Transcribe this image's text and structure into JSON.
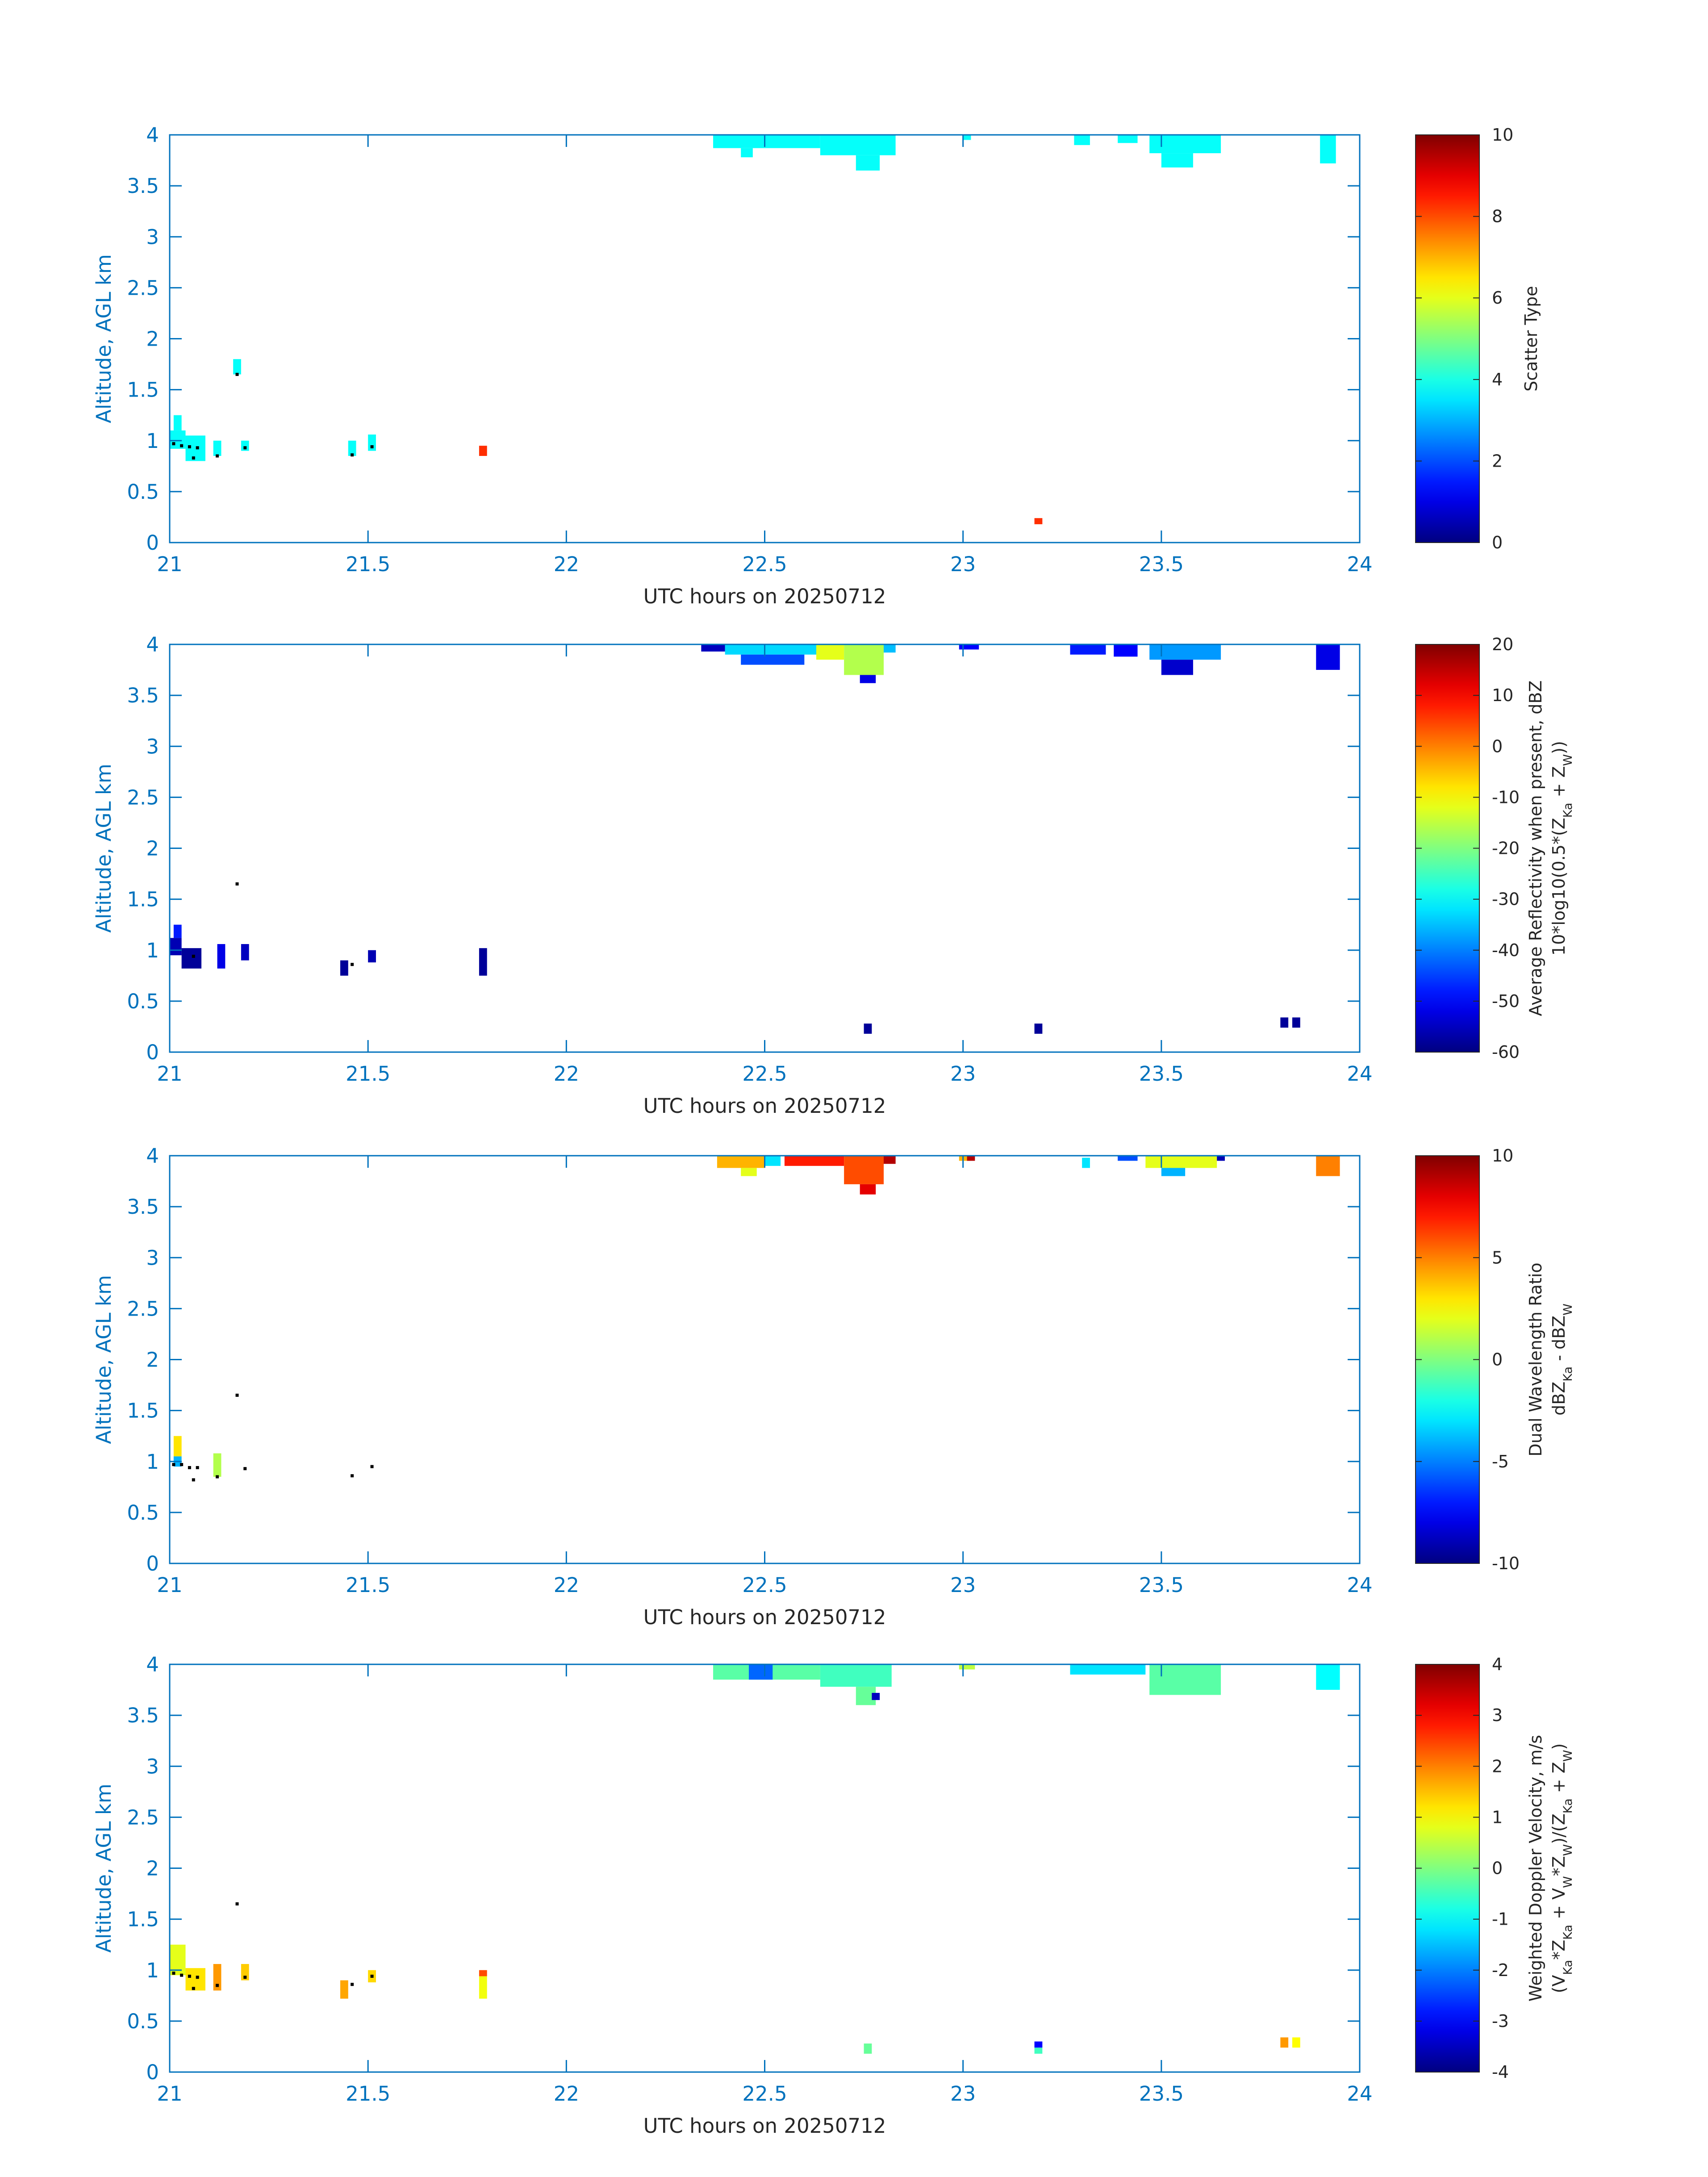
{
  "chart_data": [
    {
      "type": "heatmap",
      "xlabel": "UTC hours on 20250712",
      "ylabel": "Altitude, AGL km",
      "xlim": [
        21,
        24
      ],
      "ylim": [
        0,
        4
      ],
      "xticks": [
        "21",
        "21.5",
        "22",
        "22.5",
        "23",
        "23.5",
        "24"
      ],
      "yticks": [
        "0",
        "0.5",
        "1",
        "1.5",
        "2",
        "2.5",
        "3",
        "3.5",
        "4"
      ],
      "colorbar": {
        "label_lines": [
          "Scatter Type"
        ],
        "min": 0,
        "max": 10,
        "ticks": [
          "0",
          "2",
          "4",
          "6",
          "8",
          "10"
        ],
        "colormap": "jet"
      },
      "cells": [
        {
          "x": [
            22.37,
            22.64
          ],
          "y": [
            3.87,
            4.0
          ],
          "v": 3.8
        },
        {
          "x": [
            22.44,
            22.47
          ],
          "y": [
            3.78,
            3.87
          ],
          "v": 3.8
        },
        {
          "x": [
            22.64,
            22.83
          ],
          "y": [
            3.8,
            4.0
          ],
          "v": 3.8
        },
        {
          "x": [
            22.73,
            22.79
          ],
          "y": [
            3.65,
            3.8
          ],
          "v": 3.8
        },
        {
          "x": [
            23.0,
            23.02
          ],
          "y": [
            3.95,
            4.0
          ],
          "v": 3.8
        },
        {
          "x": [
            23.28,
            23.32
          ],
          "y": [
            3.9,
            4.0
          ],
          "v": 3.8
        },
        {
          "x": [
            23.39,
            23.44
          ],
          "y": [
            3.92,
            4.0
          ],
          "v": 3.8
        },
        {
          "x": [
            23.47,
            23.65
          ],
          "y": [
            3.82,
            4.0
          ],
          "v": 3.8
        },
        {
          "x": [
            23.5,
            23.58
          ],
          "y": [
            3.68,
            3.82
          ],
          "v": 3.8
        },
        {
          "x": [
            23.9,
            23.94
          ],
          "y": [
            3.72,
            4.0
          ],
          "v": 3.8
        },
        {
          "x": [
            21.0,
            21.04
          ],
          "y": [
            0.92,
            1.1
          ],
          "v": 3.8
        },
        {
          "x": [
            21.01,
            21.03
          ],
          "y": [
            1.1,
            1.25
          ],
          "v": 3.8
        },
        {
          "x": [
            21.04,
            21.09
          ],
          "y": [
            0.8,
            1.05
          ],
          "v": 3.8
        },
        {
          "x": [
            21.11,
            21.13
          ],
          "y": [
            0.85,
            1.0
          ],
          "v": 3.8
        },
        {
          "x": [
            21.16,
            21.18
          ],
          "y": [
            1.65,
            1.8
          ],
          "v": 3.8
        },
        {
          "x": [
            21.18,
            21.2
          ],
          "y": [
            0.9,
            1.0
          ],
          "v": 3.8
        },
        {
          "x": [
            21.45,
            21.47
          ],
          "y": [
            0.85,
            1.0
          ],
          "v": 3.8
        },
        {
          "x": [
            21.5,
            21.52
          ],
          "y": [
            0.9,
            1.06
          ],
          "v": 3.8
        },
        {
          "x": [
            21.78,
            21.8
          ],
          "y": [
            0.85,
            0.95
          ],
          "v": 8.3
        },
        {
          "x": [
            23.18,
            23.2
          ],
          "y": [
            0.18,
            0.24
          ],
          "v": 8.3
        }
      ],
      "dots": [
        [
          21.01,
          0.97
        ],
        [
          21.03,
          0.95
        ],
        [
          21.05,
          0.94
        ],
        [
          21.06,
          0.83
        ],
        [
          21.07,
          0.93
        ],
        [
          21.12,
          0.85
        ],
        [
          21.17,
          1.65
        ],
        [
          21.19,
          0.93
        ],
        [
          21.46,
          0.86
        ],
        [
          21.51,
          0.94
        ]
      ]
    },
    {
      "type": "heatmap",
      "xlabel": "UTC hours on 20250712",
      "ylabel": "Altitude, AGL km",
      "xlim": [
        21,
        24
      ],
      "ylim": [
        0,
        4
      ],
      "xticks": [
        "21",
        "21.5",
        "22",
        "22.5",
        "23",
        "23.5",
        "24"
      ],
      "yticks": [
        "0",
        "0.5",
        "1",
        "1.5",
        "2",
        "2.5",
        "3",
        "3.5",
        "4"
      ],
      "colorbar": {
        "label_lines": [
          "Average Reflectivity when present, dBZ",
          "10*log10(0.5*(Z_Ka + Z_W))"
        ],
        "min": -60,
        "max": 20,
        "ticks": [
          "-60",
          "-50",
          "-40",
          "-30",
          "-20",
          "-10",
          "0",
          "10",
          "20"
        ],
        "colormap": "jet"
      },
      "cells": [
        {
          "x": [
            22.34,
            22.4
          ],
          "y": [
            3.93,
            4.0
          ],
          "v": -55
        },
        {
          "x": [
            22.4,
            22.63
          ],
          "y": [
            3.9,
            4.0
          ],
          "v": -33
        },
        {
          "x": [
            22.63,
            22.7
          ],
          "y": [
            3.85,
            4.0
          ],
          "v": -12
        },
        {
          "x": [
            22.7,
            22.8
          ],
          "y": [
            3.7,
            4.0
          ],
          "v": -16
        },
        {
          "x": [
            22.74,
            22.78
          ],
          "y": [
            3.62,
            3.7
          ],
          "v": -52
        },
        {
          "x": [
            22.8,
            22.83
          ],
          "y": [
            3.92,
            4.0
          ],
          "v": -35
        },
        {
          "x": [
            22.44,
            22.6
          ],
          "y": [
            3.8,
            3.9
          ],
          "v": -44
        },
        {
          "x": [
            22.99,
            23.04
          ],
          "y": [
            3.95,
            4.0
          ],
          "v": -50
        },
        {
          "x": [
            23.27,
            23.36
          ],
          "y": [
            3.9,
            4.0
          ],
          "v": -48
        },
        {
          "x": [
            23.38,
            23.44
          ],
          "y": [
            3.88,
            4.0
          ],
          "v": -50
        },
        {
          "x": [
            23.47,
            23.65
          ],
          "y": [
            3.85,
            4.0
          ],
          "v": -38
        },
        {
          "x": [
            23.5,
            23.58
          ],
          "y": [
            3.7,
            3.85
          ],
          "v": -54
        },
        {
          "x": [
            23.89,
            23.95
          ],
          "y": [
            3.75,
            4.0
          ],
          "v": -52
        },
        {
          "x": [
            21.0,
            21.03
          ],
          "y": [
            0.95,
            1.12
          ],
          "v": -56
        },
        {
          "x": [
            21.01,
            21.03
          ],
          "y": [
            1.12,
            1.25
          ],
          "v": -48
        },
        {
          "x": [
            21.03,
            21.08
          ],
          "y": [
            0.82,
            1.02
          ],
          "v": -58
        },
        {
          "x": [
            21.12,
            21.14
          ],
          "y": [
            0.82,
            1.06
          ],
          "v": -52
        },
        {
          "x": [
            21.18,
            21.2
          ],
          "y": [
            0.9,
            1.06
          ],
          "v": -55
        },
        {
          "x": [
            21.43,
            21.45
          ],
          "y": [
            0.75,
            0.9
          ],
          "v": -58
        },
        {
          "x": [
            21.5,
            21.52
          ],
          "y": [
            0.88,
            1.0
          ],
          "v": -56
        },
        {
          "x": [
            21.78,
            21.8
          ],
          "y": [
            0.75,
            1.02
          ],
          "v": -58
        },
        {
          "x": [
            22.75,
            22.77
          ],
          "y": [
            0.18,
            0.28
          ],
          "v": -58
        },
        {
          "x": [
            23.18,
            23.2
          ],
          "y": [
            0.18,
            0.28
          ],
          "v": -58
        },
        {
          "x": [
            23.8,
            23.82
          ],
          "y": [
            0.24,
            0.34
          ],
          "v": -58
        },
        {
          "x": [
            23.83,
            23.85
          ],
          "y": [
            0.24,
            0.34
          ],
          "v": -58
        }
      ],
      "dots": [
        [
          21.06,
          0.94
        ],
        [
          21.17,
          1.65
        ],
        [
          21.46,
          0.86
        ]
      ]
    },
    {
      "type": "heatmap",
      "xlabel": "UTC hours on 20250712",
      "ylabel": "Altitude, AGL km",
      "xlim": [
        21,
        24
      ],
      "ylim": [
        0,
        4
      ],
      "xticks": [
        "21",
        "21.5",
        "22",
        "22.5",
        "23",
        "23.5",
        "24"
      ],
      "yticks": [
        "0",
        "0.5",
        "1",
        "1.5",
        "2",
        "2.5",
        "3",
        "3.5",
        "4"
      ],
      "colorbar": {
        "label_lines": [
          "Dual Wavelength Ratio",
          "dBZ_Ka - dBZ_W"
        ],
        "min": -10,
        "max": 10,
        "ticks": [
          "-10",
          "-5",
          "0",
          "5",
          "10"
        ],
        "colormap": "jet"
      },
      "cells": [
        {
          "x": [
            22.38,
            22.5
          ],
          "y": [
            3.88,
            4.0
          ],
          "v": 4
        },
        {
          "x": [
            22.44,
            22.48
          ],
          "y": [
            3.8,
            3.88
          ],
          "v": 2
        },
        {
          "x": [
            22.5,
            22.54
          ],
          "y": [
            3.9,
            4.0
          ],
          "v": -3
        },
        {
          "x": [
            22.55,
            22.7
          ],
          "y": [
            3.9,
            4.0
          ],
          "v": 7
        },
        {
          "x": [
            22.7,
            22.8
          ],
          "y": [
            3.72,
            4.0
          ],
          "v": 6
        },
        {
          "x": [
            22.74,
            22.78
          ],
          "y": [
            3.62,
            3.72
          ],
          "v": 8
        },
        {
          "x": [
            22.8,
            22.83
          ],
          "y": [
            3.92,
            4.0
          ],
          "v": 9
        },
        {
          "x": [
            22.99,
            23.02
          ],
          "y": [
            3.95,
            4.0
          ],
          "v": 4
        },
        {
          "x": [
            23.01,
            23.03
          ],
          "y": [
            3.95,
            4.0
          ],
          "v": 9
        },
        {
          "x": [
            23.3,
            23.32
          ],
          "y": [
            3.88,
            3.98
          ],
          "v": -3
        },
        {
          "x": [
            23.39,
            23.44
          ],
          "y": [
            3.95,
            4.0
          ],
          "v": -6
        },
        {
          "x": [
            23.46,
            23.64
          ],
          "y": [
            3.88,
            4.0
          ],
          "v": 2
        },
        {
          "x": [
            23.5,
            23.56
          ],
          "y": [
            3.8,
            3.88
          ],
          "v": -4
        },
        {
          "x": [
            23.64,
            23.66
          ],
          "y": [
            3.95,
            4.0
          ],
          "v": -9
        },
        {
          "x": [
            23.89,
            23.95
          ],
          "y": [
            3.8,
            4.0
          ],
          "v": 5
        },
        {
          "x": [
            21.01,
            21.03
          ],
          "y": [
            1.05,
            1.25
          ],
          "v": 3
        },
        {
          "x": [
            21.01,
            21.03
          ],
          "y": [
            0.95,
            1.05
          ],
          "v": -4
        },
        {
          "x": [
            21.11,
            21.13
          ],
          "y": [
            0.85,
            1.08
          ],
          "v": 1
        }
      ],
      "dots": [
        [
          21.01,
          0.97
        ],
        [
          21.03,
          0.97
        ],
        [
          21.05,
          0.94
        ],
        [
          21.06,
          0.82
        ],
        [
          21.07,
          0.94
        ],
        [
          21.12,
          0.85
        ],
        [
          21.17,
          1.65
        ],
        [
          21.19,
          0.93
        ],
        [
          21.46,
          0.86
        ],
        [
          21.51,
          0.95
        ]
      ]
    },
    {
      "type": "heatmap",
      "xlabel": "UTC hours on 20250712",
      "ylabel": "Altitude, AGL km",
      "xlim": [
        21,
        24
      ],
      "ylim": [
        0,
        4
      ],
      "xticks": [
        "21",
        "21.5",
        "22",
        "22.5",
        "23",
        "23.5",
        "24"
      ],
      "yticks": [
        "0",
        "0.5",
        "1",
        "1.5",
        "2",
        "2.5",
        "3",
        "3.5",
        "4"
      ],
      "colorbar": {
        "label_lines": [
          "Weighted Doppler Velocity, m/s",
          "(V_Ka*Z_Ka + V_W*Z_W)/(Z_Ka + Z_W)"
        ],
        "min": -4,
        "max": 4,
        "ticks": [
          "-4",
          "-3",
          "-2",
          "-1",
          "0",
          "1",
          "2",
          "3",
          "4"
        ],
        "colormap": "jet"
      },
      "cells": [
        {
          "x": [
            22.37,
            22.64
          ],
          "y": [
            3.85,
            4.0
          ],
          "v": -0.3
        },
        {
          "x": [
            22.46,
            22.52
          ],
          "y": [
            3.85,
            4.0
          ],
          "v": -2.2
        },
        {
          "x": [
            22.64,
            22.82
          ],
          "y": [
            3.78,
            4.0
          ],
          "v": -0.5
        },
        {
          "x": [
            22.73,
            22.78
          ],
          "y": [
            3.6,
            3.78
          ],
          "v": -0.2
        },
        {
          "x": [
            22.77,
            22.79
          ],
          "y": [
            3.65,
            3.72
          ],
          "v": -3.5
        },
        {
          "x": [
            22.99,
            23.03
          ],
          "y": [
            3.95,
            4.0
          ],
          "v": 0.5
        },
        {
          "x": [
            23.27,
            23.46
          ],
          "y": [
            3.9,
            4.0
          ],
          "v": -1.2
        },
        {
          "x": [
            23.47,
            23.65
          ],
          "y": [
            3.7,
            4.0
          ],
          "v": -0.3
        },
        {
          "x": [
            23.89,
            23.95
          ],
          "y": [
            3.75,
            4.0
          ],
          "v": -1.0
        },
        {
          "x": [
            21.0,
            21.04
          ],
          "y": [
            0.95,
            1.25
          ],
          "v": 0.8
        },
        {
          "x": [
            21.04,
            21.09
          ],
          "y": [
            0.8,
            1.02
          ],
          "v": 1.2
        },
        {
          "x": [
            21.11,
            21.13
          ],
          "y": [
            0.8,
            1.06
          ],
          "v": 1.8
        },
        {
          "x": [
            21.18,
            21.2
          ],
          "y": [
            0.9,
            1.06
          ],
          "v": 1.4
        },
        {
          "x": [
            21.43,
            21.45
          ],
          "y": [
            0.72,
            0.9
          ],
          "v": 1.7
        },
        {
          "x": [
            21.5,
            21.52
          ],
          "y": [
            0.88,
            1.0
          ],
          "v": 1.3
        },
        {
          "x": [
            21.78,
            21.8
          ],
          "y": [
            0.72,
            0.94
          ],
          "v": 0.9
        },
        {
          "x": [
            21.78,
            21.8
          ],
          "y": [
            0.94,
            1.0
          ],
          "v": 2.4
        },
        {
          "x": [
            22.75,
            22.77
          ],
          "y": [
            0.18,
            0.28
          ],
          "v": -0.2
        },
        {
          "x": [
            23.18,
            23.2
          ],
          "y": [
            0.18,
            0.24
          ],
          "v": -0.5
        },
        {
          "x": [
            23.18,
            23.2
          ],
          "y": [
            0.24,
            0.3
          ],
          "v": -3.0
        },
        {
          "x": [
            23.8,
            23.82
          ],
          "y": [
            0.24,
            0.34
          ],
          "v": 1.8
        },
        {
          "x": [
            23.83,
            23.85
          ],
          "y": [
            0.24,
            0.34
          ],
          "v": 1.0
        }
      ],
      "dots": [
        [
          21.01,
          0.97
        ],
        [
          21.03,
          0.95
        ],
        [
          21.05,
          0.94
        ],
        [
          21.06,
          0.82
        ],
        [
          21.07,
          0.93
        ],
        [
          21.12,
          0.85
        ],
        [
          21.17,
          1.65
        ],
        [
          21.19,
          0.93
        ],
        [
          21.46,
          0.86
        ],
        [
          21.51,
          0.94
        ]
      ]
    }
  ]
}
